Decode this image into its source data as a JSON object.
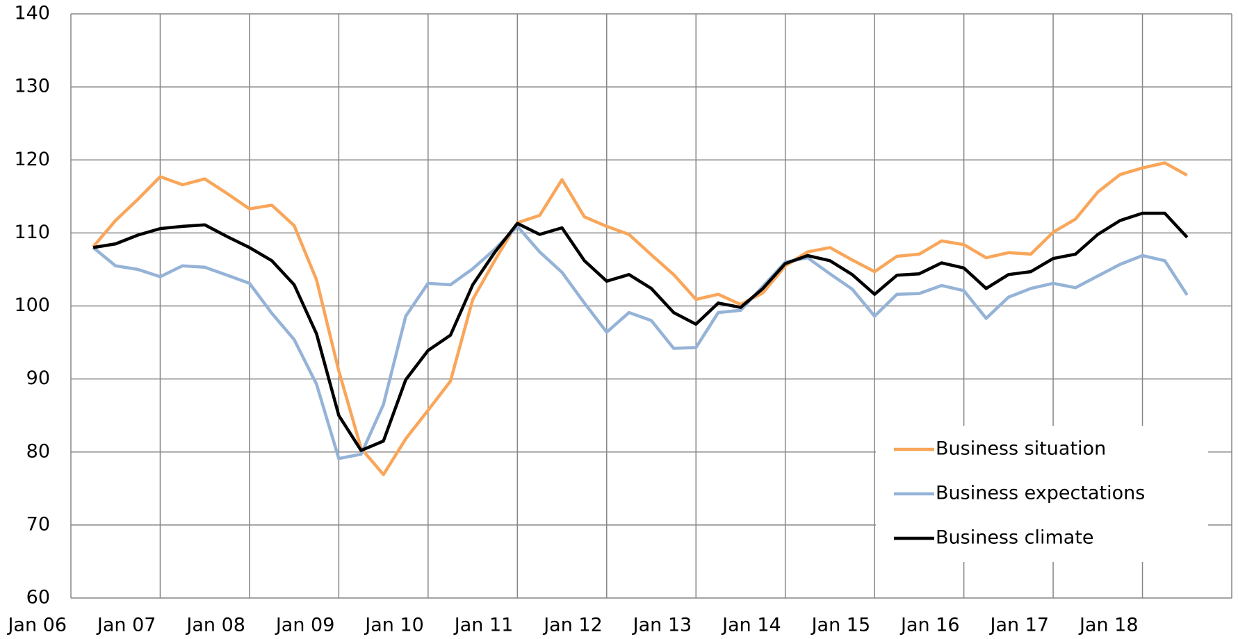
{
  "chart_data": {
    "type": "line",
    "categories": [
      "Jan 06",
      null,
      null,
      null,
      "Jan 07",
      null,
      null,
      null,
      "Jan 08",
      null,
      null,
      null,
      "Jan 09",
      null,
      null,
      null,
      "Jan 10",
      null,
      null,
      null,
      "Jan 11",
      null,
      null,
      null,
      "Jan 12",
      null,
      null,
      null,
      "Jan 13",
      null,
      null,
      null,
      "Jan 14",
      null,
      null,
      null,
      "Jan 15",
      null,
      null,
      null,
      "Jan 16",
      null,
      null,
      null,
      "Jan 17",
      null,
      null,
      null,
      "Jan 18",
      null,
      null
    ],
    "series": [
      {
        "name": "Business situation",
        "color": "#f9a65a",
        "values": [
          null,
          108.1,
          111.7,
          114.6,
          117.7,
          116.6,
          117.4,
          115.4,
          113.3,
          113.8,
          111.0,
          103.6,
          91.1,
          80.5,
          76.9,
          81.8,
          85.7,
          89.7,
          100.9,
          106.3,
          111.4,
          112.4,
          117.3,
          112.2,
          110.9,
          109.8,
          107.0,
          104.3,
          100.9,
          101.6,
          100.2,
          101.8,
          105.5,
          107.4,
          108.0,
          106.3,
          104.7,
          106.8,
          107.1,
          108.9,
          108.4,
          106.6,
          107.3,
          107.1,
          110.1,
          111.9,
          115.6,
          118.0,
          118.9,
          119.6,
          117.9
        ]
      },
      {
        "name": "Business expectations",
        "color": "#95b3d7",
        "values": [
          null,
          108.0,
          105.5,
          105.0,
          104.0,
          105.5,
          105.3,
          104.2,
          103.1,
          99.0,
          95.4,
          89.3,
          79.1,
          79.7,
          86.5,
          98.6,
          103.1,
          102.9,
          105.1,
          107.8,
          110.9,
          107.4,
          104.6,
          100.4,
          96.4,
          99.1,
          98.0,
          94.2,
          94.3,
          99.1,
          99.4,
          102.7,
          106.0,
          106.6,
          104.4,
          102.3,
          98.6,
          101.6,
          101.7,
          102.8,
          102.1,
          98.3,
          101.2,
          102.4,
          103.1,
          102.5,
          104.1,
          105.7,
          106.9,
          106.2,
          101.5
        ]
      },
      {
        "name": "Business climate",
        "color": "#000000",
        "values": [
          null,
          108.0,
          108.5,
          109.7,
          110.6,
          110.9,
          111.1,
          109.5,
          108.0,
          106.2,
          102.9,
          96.2,
          85.0,
          80.2,
          81.5,
          89.9,
          93.9,
          96.0,
          102.9,
          107.4,
          111.3,
          109.8,
          110.7,
          106.2,
          103.4,
          104.3,
          102.4,
          99.1,
          97.5,
          100.4,
          99.8,
          102.4,
          105.8,
          106.9,
          106.2,
          104.3,
          101.6,
          104.2,
          104.4,
          105.9,
          105.2,
          102.4,
          104.3,
          104.7,
          106.5,
          107.1,
          109.8,
          111.7,
          112.7,
          112.7,
          109.4
        ]
      }
    ],
    "ylim": [
      60,
      140
    ],
    "yticks": [
      60,
      70,
      80,
      90,
      100,
      110,
      120,
      130,
      140
    ],
    "grid": true,
    "legend": "lower right"
  }
}
